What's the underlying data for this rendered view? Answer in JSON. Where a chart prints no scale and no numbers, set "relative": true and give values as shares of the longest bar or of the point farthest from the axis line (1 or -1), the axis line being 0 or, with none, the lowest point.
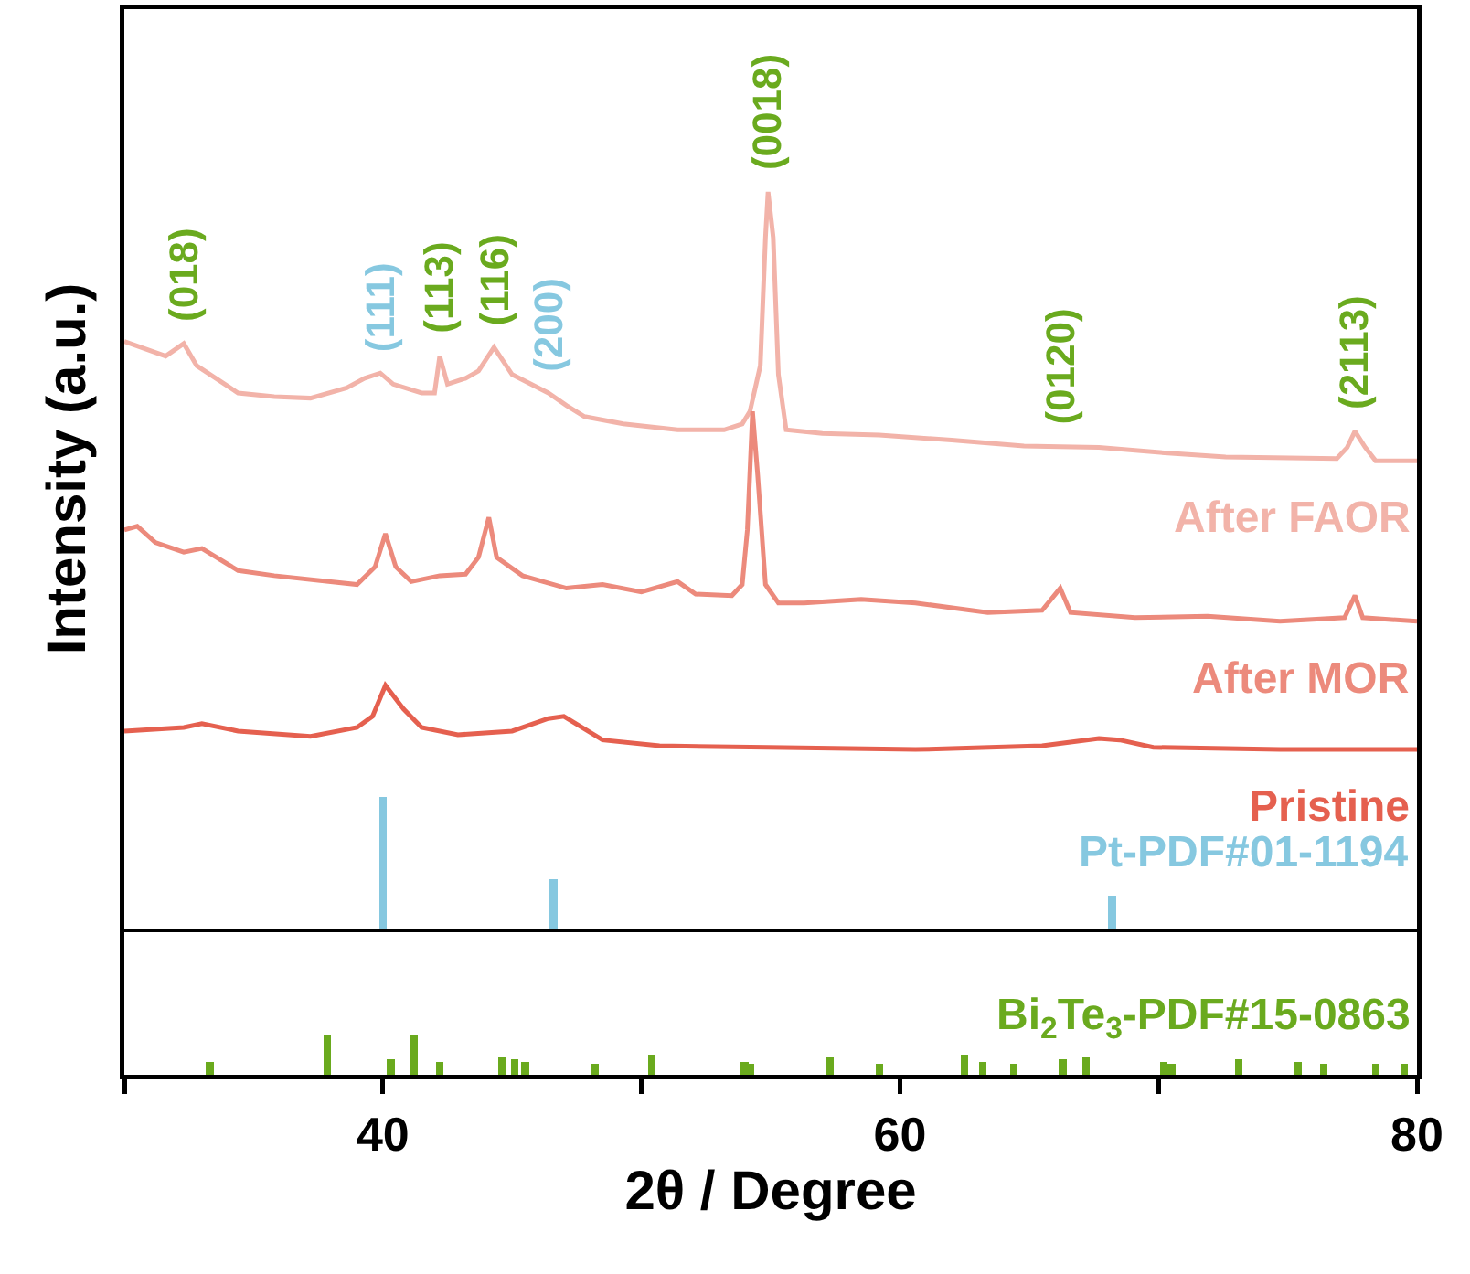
{
  "chart_data": [
    {
      "type": "line",
      "relative": true,
      "ylabel": "Intensity (a.u.)",
      "xlim": [
        30,
        80
      ],
      "tick_labels": false,
      "series": [
        {
          "name": "After FAOR",
          "color": "#f2b3a9",
          "x": [
            30.0,
            31.6,
            32.3,
            32.8,
            34.4,
            35.8,
            37.2,
            38.6,
            39.3,
            39.9,
            40.4,
            41.5,
            42.0,
            42.2,
            42.5,
            43.2,
            43.7,
            44.3,
            45.0,
            46.4,
            47.1,
            47.8,
            49.3,
            51.4,
            53.2,
            53.9,
            54.2,
            54.6,
            54.8,
            54.9,
            55.1,
            55.3,
            55.6,
            57.0,
            59.2,
            62.0,
            64.8,
            66.2,
            67.7,
            70.5,
            72.6,
            76.9,
            77.3,
            77.6,
            78.0,
            78.4,
            80.0
          ],
          "values": [
            0.797,
            0.777,
            0.794,
            0.764,
            0.727,
            0.722,
            0.72,
            0.734,
            0.747,
            0.754,
            0.739,
            0.727,
            0.727,
            0.777,
            0.739,
            0.747,
            0.757,
            0.789,
            0.752,
            0.727,
            0.71,
            0.695,
            0.685,
            0.677,
            0.677,
            0.685,
            0.702,
            0.764,
            0.938,
            1.0,
            0.938,
            0.752,
            0.677,
            0.672,
            0.67,
            0.663,
            0.655,
            0.654,
            0.653,
            0.645,
            0.64,
            0.638,
            0.653,
            0.675,
            0.653,
            0.635,
            0.635
          ]
        },
        {
          "name": "After MOR",
          "color": "#ec8a7c",
          "x": [
            30.0,
            30.5,
            31.2,
            32.3,
            33.0,
            34.4,
            35.8,
            37.9,
            39.0,
            39.7,
            40.1,
            40.5,
            41.1,
            42.2,
            43.2,
            43.7,
            44.1,
            44.4,
            45.4,
            47.1,
            48.5,
            50.0,
            51.4,
            52.1,
            53.5,
            53.9,
            54.1,
            54.3,
            54.5,
            54.8,
            55.3,
            56.3,
            58.5,
            60.6,
            63.4,
            65.5,
            66.2,
            66.6,
            69.1,
            71.9,
            74.7,
            77.2,
            77.6,
            77.9,
            80.0
          ],
          "values": [
            0.541,
            0.546,
            0.524,
            0.511,
            0.516,
            0.486,
            0.479,
            0.471,
            0.467,
            0.491,
            0.536,
            0.491,
            0.471,
            0.479,
            0.481,
            0.504,
            0.558,
            0.504,
            0.479,
            0.462,
            0.467,
            0.457,
            0.471,
            0.454,
            0.452,
            0.467,
            0.541,
            0.702,
            0.615,
            0.467,
            0.442,
            0.442,
            0.447,
            0.442,
            0.429,
            0.432,
            0.462,
            0.429,
            0.422,
            0.424,
            0.417,
            0.422,
            0.452,
            0.422,
            0.417
          ]
        },
        {
          "name": "Pristine",
          "color": "#e5604f",
          "x": [
            30.0,
            32.3,
            33.0,
            34.4,
            37.2,
            39.0,
            39.6,
            40.1,
            40.8,
            41.5,
            42.9,
            45.0,
            46.4,
            47.0,
            47.7,
            48.5,
            50.7,
            54.9,
            60.6,
            65.5,
            67.7,
            68.5,
            69.8,
            74.7,
            80.0
          ],
          "values": [
            0.268,
            0.273,
            0.278,
            0.268,
            0.261,
            0.273,
            0.288,
            0.33,
            0.298,
            0.273,
            0.263,
            0.268,
            0.285,
            0.288,
            0.273,
            0.256,
            0.248,
            0.246,
            0.243,
            0.248,
            0.258,
            0.256,
            0.246,
            0.243,
            0.243
          ]
        },
        {
          "name": "Pt-PDF#01-1194",
          "type": "bar",
          "color": "#86c8e0",
          "x": [
            40.0,
            46.6,
            68.2
          ],
          "values": [
            0.179,
            0.067,
            0.045
          ]
        }
      ],
      "annotations": [
        {
          "text": "(018)",
          "x": 32.3,
          "y": 0.794
        },
        {
          "text": "(111)",
          "x": 39.9,
          "y": 0.754
        },
        {
          "text": "(113)",
          "x": 42.2,
          "y": 0.777
        },
        {
          "text": "(116)",
          "x": 44.3,
          "y": 0.789
        },
        {
          "text": "(200)",
          "x": 46.4,
          "y": 0.727
        },
        {
          "text": "(0018)",
          "x": 54.9,
          "y": 1.0
        },
        {
          "text": "(0120)",
          "x": 66.2,
          "y": 0.654
        },
        {
          "text": "(2113)",
          "x": 77.6,
          "y": 0.675
        }
      ]
    },
    {
      "type": "bar",
      "relative": true,
      "xlabel": "2θ / Degree",
      "xlim": [
        30,
        80
      ],
      "xticks": [
        {
          "value": 30,
          "label": null
        },
        40,
        {
          "value": 50,
          "label": null
        },
        60,
        {
          "value": 70,
          "label": null
        },
        80
      ],
      "tick_labels": "x",
      "series": [
        {
          "name": "Bi$_{2}$Te$_{3}$-PDF#15-0863",
          "color": "#6aaa1e",
          "x": [
            33.3,
            37.85,
            40.3,
            41.2,
            42.2,
            44.6,
            45.1,
            45.5,
            48.2,
            50.4,
            54.0,
            54.2,
            57.3,
            59.2,
            62.5,
            63.2,
            64.4,
            66.3,
            67.2,
            70.2,
            70.5,
            73.1,
            75.4,
            76.4,
            78.4,
            79.5
          ],
          "values": [
            0.32,
            1,
            0.38,
            1,
            0.32,
            0.43,
            0.38,
            0.32,
            0.28,
            0.49,
            0.32,
            0.28,
            0.43,
            0.28,
            0.49,
            0.32,
            0.28,
            0.38,
            0.43,
            0.32,
            0.28,
            0.38,
            0.32,
            0.28,
            0.28,
            0.28
          ]
        }
      ]
    }
  ]
}
